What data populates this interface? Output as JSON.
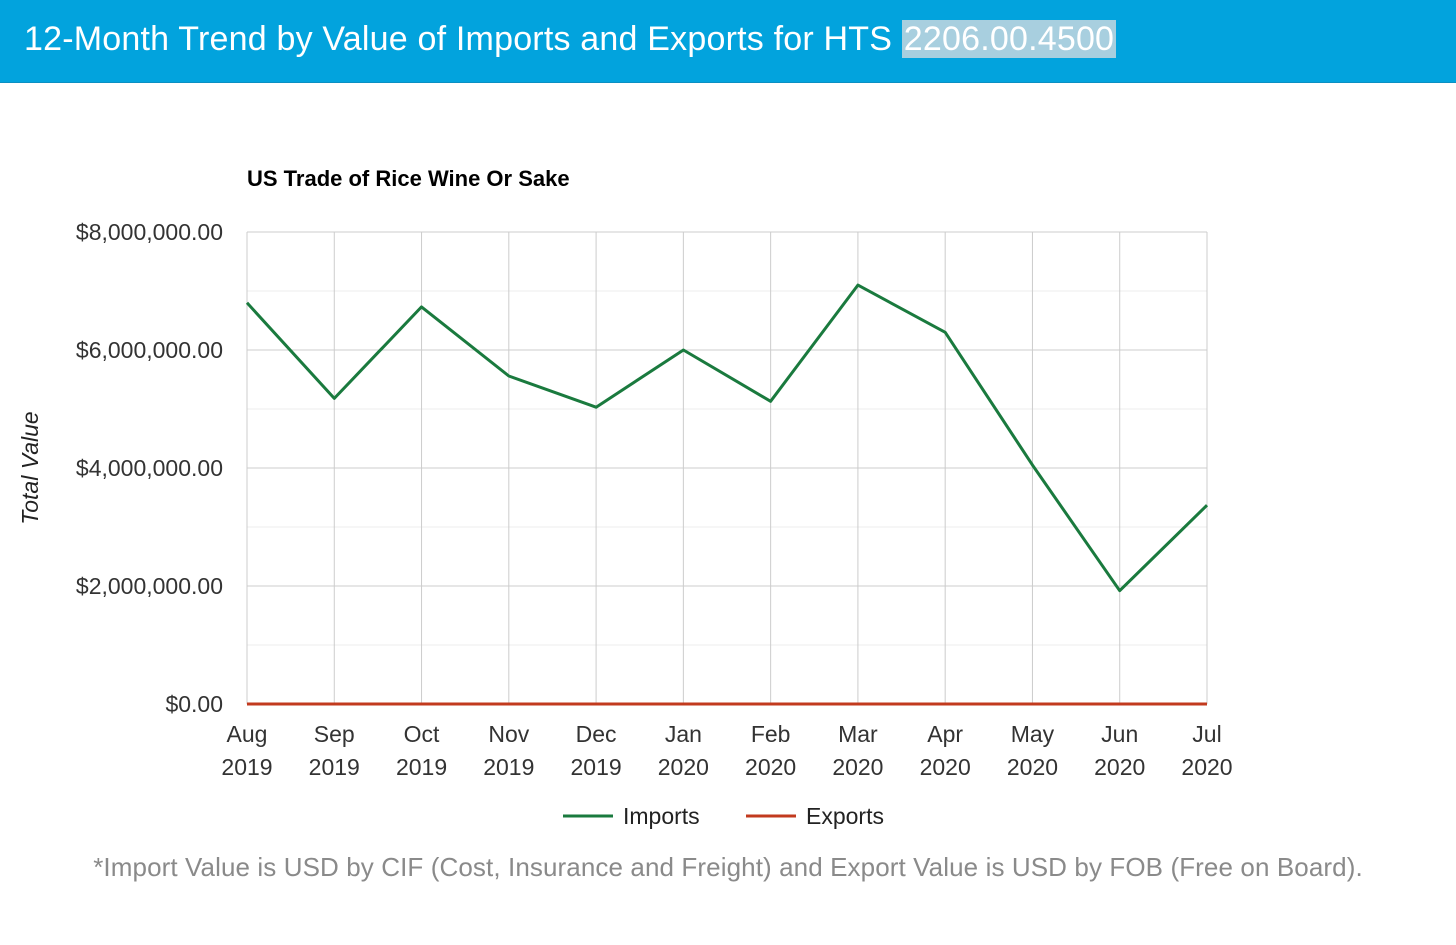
{
  "header": {
    "title_prefix": "12-Month Trend by Value of Imports and Exports for HTS ",
    "hts_code": "2206.00.4500"
  },
  "colors": {
    "header_bg": "#02a3dd",
    "imports": "#1a7a3e",
    "exports": "#c23a1e"
  },
  "chart_data": {
    "type": "line",
    "title": "US Trade of Rice Wine Or Sake",
    "xlabel": "",
    "ylabel": "Total Value",
    "categories": [
      [
        "Aug",
        "2019"
      ],
      [
        "Sep",
        "2019"
      ],
      [
        "Oct",
        "2019"
      ],
      [
        "Nov",
        "2019"
      ],
      [
        "Dec",
        "2019"
      ],
      [
        "Jan",
        "2020"
      ],
      [
        "Feb",
        "2020"
      ],
      [
        "Mar",
        "2020"
      ],
      [
        "Apr",
        "2020"
      ],
      [
        "May",
        "2020"
      ],
      [
        "Jun",
        "2020"
      ],
      [
        "Jul",
        "2020"
      ]
    ],
    "ylim": [
      0,
      8000000
    ],
    "yticks": [
      0,
      2000000,
      4000000,
      6000000,
      8000000
    ],
    "ytick_labels": [
      "$0.00",
      "$2,000,000.00",
      "$4,000,000.00",
      "$6,000,000.00",
      "$8,000,000.00"
    ],
    "grid": true,
    "legend_position": "bottom",
    "series": [
      {
        "name": "Imports",
        "color": "#1a7a3e",
        "values": [
          6800000,
          5180000,
          6730000,
          5560000,
          5030000,
          6000000,
          5130000,
          7100000,
          6300000,
          4050000,
          1920000,
          3370000
        ]
      },
      {
        "name": "Exports",
        "color": "#c23a1e",
        "values": [
          0,
          0,
          0,
          0,
          0,
          0,
          0,
          0,
          0,
          0,
          0,
          0
        ]
      }
    ]
  },
  "footnote": "*Import Value is USD by CIF (Cost, Insurance and Freight) and Export Value is USD by FOB (Free on Board)."
}
